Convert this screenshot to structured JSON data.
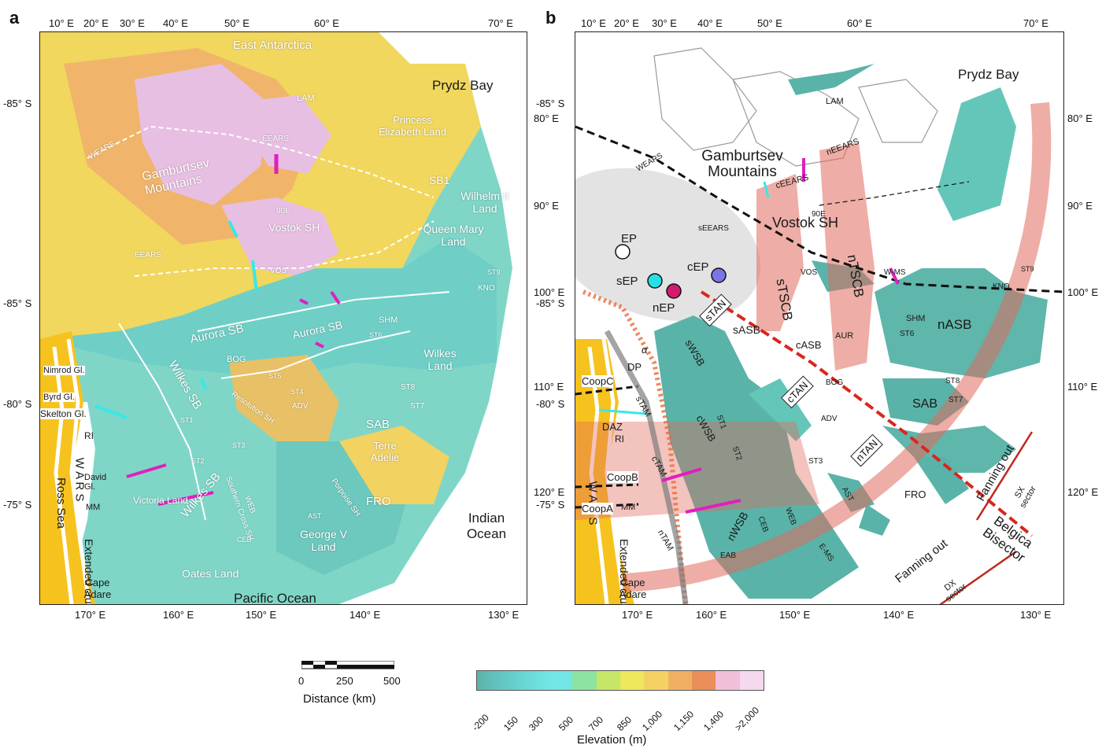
{
  "panel_a": {
    "letter": "a",
    "top_lon_labels": [
      "10° E",
      "20° E",
      "30° E",
      "40° E",
      "50° E",
      "60° E",
      "70° E"
    ],
    "bottom_lon_labels": [
      "170° E",
      "160° E",
      "150° E",
      "140° E",
      "130° E"
    ],
    "left_lat_labels": [
      "-85° S",
      "-85° S",
      "-80° S",
      "-75° S"
    ],
    "labels_white": [
      "East Antarctica",
      "LAM",
      "Princess Elizabeth Land",
      "SB1",
      "Wilhelm II Land",
      "Queen Mary Land",
      "Gamburtsev Mountains",
      "EEARS",
      "WEARS",
      "Vostok SH",
      "90E",
      "VOS",
      "EEARS",
      "Aurora SB",
      "Aurora SB",
      "BOG",
      "Wilkes SB",
      "Wilkes SB",
      "SHM",
      "Wilkes Land",
      "ST8",
      "ST7",
      "SAB",
      "Terre Adelie",
      "FRO",
      "George V Land",
      "Oates Land",
      "Victoria Land",
      "Southern Cross SH",
      "WEB",
      "ADV",
      "Resolution SH",
      "Porpoise SH",
      "KNO",
      "ST9",
      "ST6",
      "ST5",
      "ST4",
      "ST3",
      "ST2",
      "ST1",
      "CEB",
      "AST"
    ],
    "labels_dark": [
      "Prydz Bay",
      "Indian Ocean",
      "Pacific Ocean",
      "Ross Sea",
      "W A R S",
      "Extended crust",
      "Cape Adare",
      "Nimrod Gl.",
      "Byrd Gl.",
      "Skelton Gl.",
      "RI",
      "David Gl.",
      "MM"
    ]
  },
  "panel_b": {
    "letter": "b",
    "top_lon_labels": [
      "10° E",
      "20° E",
      "30° E",
      "40° E",
      "50° E",
      "60° E",
      "70° E"
    ],
    "bottom_lon_labels": [
      "170° E",
      "160° E",
      "150° E",
      "140° E",
      "130° E"
    ],
    "left_lat_labels": [
      "-85° S",
      "-85° S",
      "-80° S",
      "-75° S"
    ],
    "right_lon_labels": [
      "80° E",
      "90° E",
      "100° E",
      "110° E",
      "120° E"
    ],
    "left_lon_labels": [
      "80° E",
      "90° E",
      "100° E",
      "110° E",
      "120° E"
    ],
    "labels_dark": [
      "Prydz Bay",
      "Gamburtsev Mountains",
      "Vostok SH",
      "EP",
      "sEP",
      "cEP",
      "nEP",
      "sTSCB",
      "nTSCB",
      "LAM",
      "nEEARS",
      "cEEARS",
      "WEARS",
      "sEEARS",
      "90E",
      "VOS",
      "W-MS",
      "KNO",
      "ST9",
      "SHM",
      "ST6",
      "nASB",
      "sASB",
      "cASB",
      "AUR",
      "ST8",
      "ST7",
      "SAB",
      "BOG",
      "ADV",
      "ST3",
      "AST",
      "FRO",
      "sWSB",
      "cWSB",
      "nWSB",
      "ST1",
      "ST2",
      "CEB",
      "WEB",
      "EAB",
      "E-MS",
      "Fanning out",
      "Fanning out",
      "SX sector",
      "DX sector",
      "Belgica Bisector",
      "W A R S",
      "Extended crust",
      "Cape Adare",
      "CoopC",
      "CoopB",
      "CoopA",
      "DAZ",
      "RI",
      "MM",
      "DP",
      "sTAM",
      "cTAM",
      "nTAM",
      "α"
    ],
    "box_labels": [
      "sTAN",
      "cTAN",
      "nTAN"
    ]
  },
  "scale_bar": {
    "ticks": [
      "0",
      "250",
      "500"
    ],
    "title": "Distance (km)"
  },
  "colorbar": {
    "title": "Elevation (m)",
    "ticks": [
      "-200",
      "150",
      "300",
      "500",
      "700",
      "850",
      "1,000",
      "1,150",
      "1,400",
      ">2,000"
    ],
    "colors": [
      "#5fb3a8",
      "#62c6c3",
      "#6ad7d3",
      "#72e6e4",
      "#8de3a1",
      "#c7e567",
      "#ede85c",
      "#f3d162",
      "#f0b063",
      "#ea8f5a",
      "#f3bfd8",
      "#f6d9ee"
    ]
  }
}
